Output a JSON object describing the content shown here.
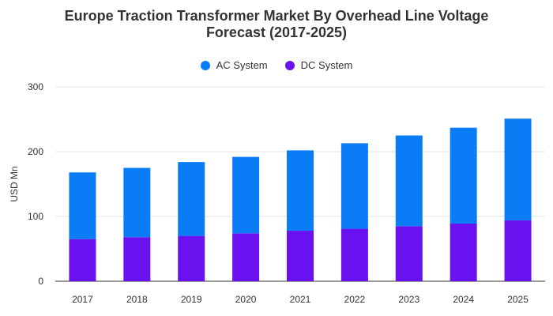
{
  "chart_data": {
    "type": "bar",
    "stacked": true,
    "title_lines": [
      "Europe Traction Transformer Market By Overhead Line Voltage",
      "Forecast (2017-2025)"
    ],
    "xlabel": "",
    "ylabel": "USD Mn",
    "ylim": [
      0,
      300
    ],
    "yticks": [
      0,
      100,
      200,
      300
    ],
    "grid": true,
    "legend_position": "top-center",
    "categories": [
      "2017",
      "2018",
      "2019",
      "2020",
      "2021",
      "2022",
      "2023",
      "2024",
      "2025"
    ],
    "series": [
      {
        "name": "DC System",
        "color": "#6a11f0",
        "values": [
          65,
          68,
          70,
          74,
          78,
          81,
          85,
          89,
          94
        ]
      },
      {
        "name": "AC System",
        "color": "#0a7cf5",
        "values": [
          103,
          107,
          114,
          118,
          124,
          132,
          140,
          148,
          157
        ]
      }
    ]
  }
}
